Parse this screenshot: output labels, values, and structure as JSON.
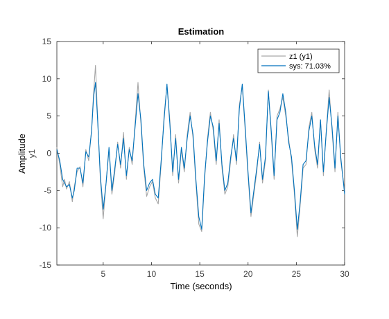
{
  "chart_data": {
    "type": "line",
    "title": "Estimation",
    "xlabel": "Time (seconds)",
    "ylabel": "Amplitude",
    "ylabel_sub": "y1",
    "xlim": [
      0.2,
      30
    ],
    "ylim": [
      -15,
      15
    ],
    "xticks": [
      5,
      10,
      15,
      20,
      25,
      30
    ],
    "yticks": [
      -15,
      -10,
      -5,
      0,
      5,
      10,
      15
    ],
    "grid": false,
    "legend_position": "top-right",
    "series": [
      {
        "name": "z1 (y1)",
        "color": "#a6a6a6",
        "x": [
          0.2,
          0.5,
          0.8,
          1.0,
          1.2,
          1.5,
          1.8,
          2.0,
          2.3,
          2.6,
          2.9,
          3.2,
          3.5,
          3.8,
          4.0,
          4.2,
          4.4,
          4.7,
          5.0,
          5.3,
          5.6,
          5.9,
          6.2,
          6.5,
          6.8,
          7.1,
          7.4,
          7.7,
          8.0,
          8.3,
          8.6,
          8.9,
          9.2,
          9.5,
          9.8,
          10.1,
          10.4,
          10.7,
          11.0,
          11.3,
          11.6,
          11.9,
          12.2,
          12.5,
          12.8,
          13.1,
          13.4,
          13.7,
          14.0,
          14.3,
          14.6,
          14.9,
          15.2,
          15.5,
          15.8,
          16.1,
          16.4,
          16.7,
          17.0,
          17.3,
          17.6,
          17.9,
          18.2,
          18.5,
          18.8,
          19.1,
          19.4,
          19.7,
          20.0,
          20.3,
          20.6,
          20.9,
          21.2,
          21.5,
          21.8,
          22.1,
          22.4,
          22.7,
          23.0,
          23.3,
          23.6,
          23.9,
          24.2,
          24.5,
          24.8,
          25.1,
          25.4,
          25.7,
          26.0,
          26.3,
          26.6,
          26.9,
          27.2,
          27.5,
          27.8,
          28.1,
          28.4,
          28.7,
          29.0,
          29.3,
          29.6,
          30.0
        ],
        "values": [
          0.8,
          -1.5,
          -4.5,
          -3.5,
          -4.8,
          -3.8,
          -6.5,
          -4.5,
          -2.5,
          -1.8,
          -4.5,
          0.5,
          -1.0,
          3.2,
          8.0,
          11.8,
          5.5,
          -3.5,
          -8.8,
          -4.0,
          0.5,
          -5.5,
          -2.5,
          1.5,
          -2.0,
          2.8,
          -3.5,
          0.8,
          -1.5,
          4.0,
          9.5,
          4.0,
          -2.0,
          -5.8,
          -4.5,
          -3.8,
          -6.0,
          -6.8,
          -1.5,
          5.0,
          9.2,
          4.5,
          -3.0,
          2.5,
          -4.0,
          0.5,
          -2.5,
          2.5,
          5.5,
          2.0,
          -4.0,
          -9.5,
          -10.5,
          -3.5,
          2.0,
          5.5,
          3.0,
          -1.5,
          4.5,
          -2.0,
          -5.5,
          -4.5,
          -1.0,
          2.5,
          -1.5,
          6.5,
          9.0,
          3.0,
          -3.0,
          -8.5,
          -5.5,
          -2.5,
          1.5,
          -4.0,
          -1.0,
          8.5,
          2.5,
          -3.5,
          5.0,
          6.0,
          7.5,
          5.0,
          2.0,
          -1.0,
          -5.5,
          -11.2,
          -7.0,
          -2.0,
          -1.5,
          3.5,
          5.5,
          0.5,
          -2.0,
          4.5,
          -3.0,
          3.0,
          8.5,
          3.0,
          -2.5,
          5.5,
          -1.0,
          -5.0
        ]
      },
      {
        "name": "sys: 71.03%",
        "color": "#0072bd",
        "x": [
          0.2,
          0.5,
          0.8,
          1.0,
          1.2,
          1.5,
          1.8,
          2.0,
          2.3,
          2.6,
          2.9,
          3.2,
          3.5,
          3.8,
          4.0,
          4.2,
          4.4,
          4.7,
          5.0,
          5.3,
          5.6,
          5.9,
          6.2,
          6.5,
          6.8,
          7.1,
          7.4,
          7.7,
          8.0,
          8.3,
          8.6,
          8.9,
          9.2,
          9.5,
          9.8,
          10.1,
          10.4,
          10.7,
          11.0,
          11.3,
          11.6,
          11.9,
          12.2,
          12.5,
          12.8,
          13.1,
          13.4,
          13.7,
          14.0,
          14.3,
          14.6,
          14.9,
          15.2,
          15.5,
          15.8,
          16.1,
          16.4,
          16.7,
          17.0,
          17.3,
          17.6,
          17.9,
          18.2,
          18.5,
          18.8,
          19.1,
          19.4,
          19.7,
          20.0,
          20.3,
          20.6,
          20.9,
          21.2,
          21.5,
          21.8,
          22.1,
          22.4,
          22.7,
          23.0,
          23.3,
          23.6,
          23.9,
          24.2,
          24.5,
          24.8,
          25.1,
          25.4,
          25.7,
          26.0,
          26.3,
          26.6,
          26.9,
          27.2,
          27.5,
          27.8,
          28.1,
          28.4,
          28.7,
          29.0,
          29.3,
          29.6,
          30.0
        ],
        "values": [
          0.5,
          -1.0,
          -3.5,
          -4.0,
          -4.5,
          -4.2,
          -6.0,
          -5.0,
          -2.0,
          -2.0,
          -4.0,
          0.2,
          -0.5,
          3.0,
          7.5,
          9.5,
          5.0,
          -3.0,
          -7.5,
          -4.0,
          0.8,
          -5.0,
          -2.0,
          1.2,
          -1.5,
          2.0,
          -3.0,
          0.5,
          -1.0,
          3.5,
          8.0,
          4.5,
          -1.5,
          -5.0,
          -4.0,
          -3.5,
          -5.5,
          -6.0,
          -1.0,
          4.5,
          9.3,
          4.0,
          -2.5,
          2.0,
          -3.5,
          0.8,
          -2.0,
          2.0,
          5.0,
          2.5,
          -3.5,
          -8.5,
          -10.2,
          -3.0,
          1.5,
          5.0,
          3.5,
          -1.0,
          4.0,
          -1.5,
          -5.0,
          -4.0,
          -0.5,
          2.0,
          -1.0,
          6.0,
          9.3,
          3.5,
          -2.5,
          -8.0,
          -5.0,
          -2.0,
          1.2,
          -3.5,
          -0.5,
          8.3,
          3.0,
          -3.0,
          4.5,
          5.5,
          8.0,
          5.5,
          1.5,
          -0.5,
          -5.0,
          -10.2,
          -6.5,
          -1.5,
          -1.0,
          3.0,
          5.0,
          1.0,
          -1.5,
          4.5,
          -2.5,
          2.8,
          7.5,
          3.5,
          -2.0,
          5.0,
          -0.5,
          -5.5
        ]
      }
    ]
  }
}
